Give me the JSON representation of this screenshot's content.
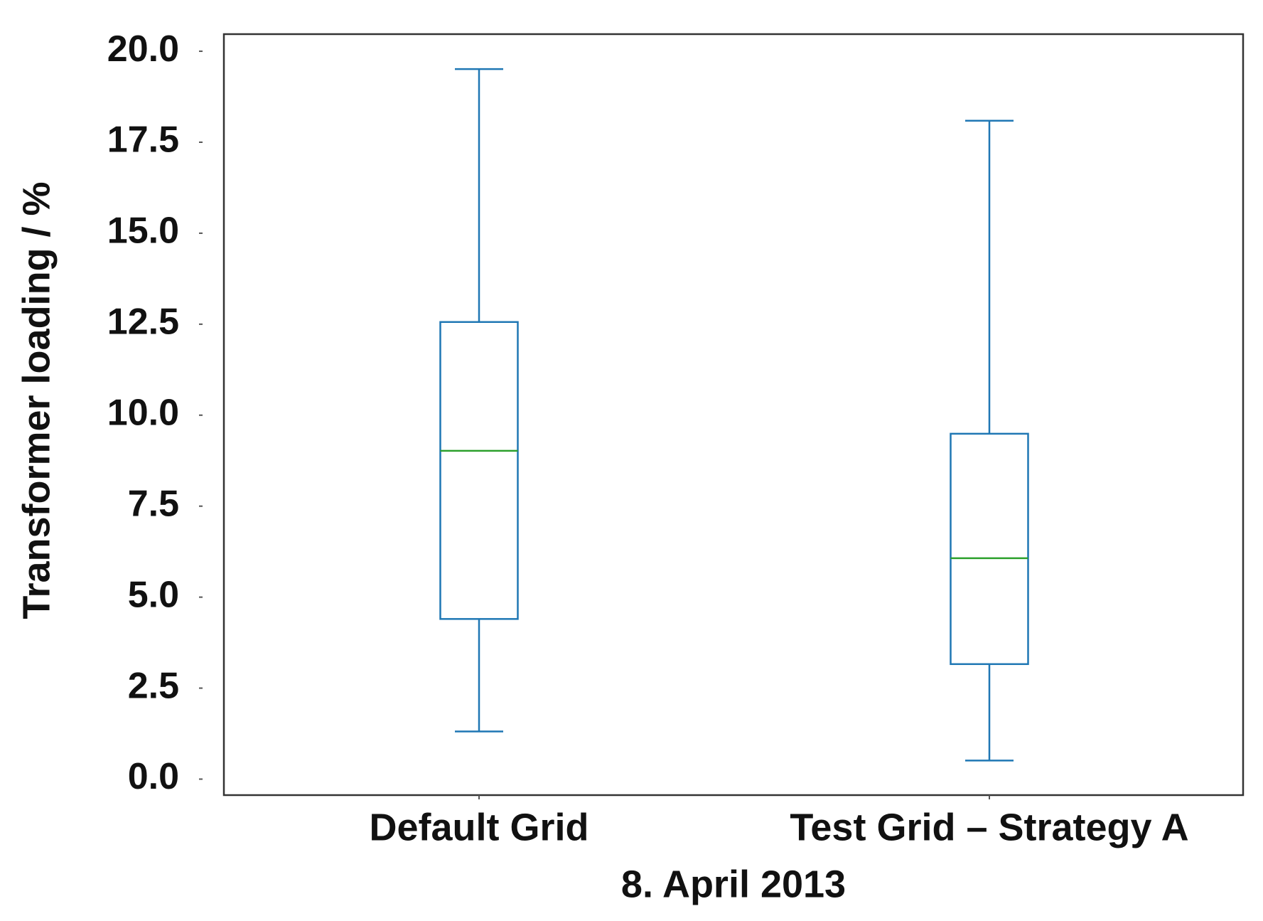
{
  "chart_data": {
    "type": "box",
    "xlabel": "8. April 2013",
    "ylabel": "Transformer loading / %",
    "categories": [
      "Default Grid",
      "Test Grid – Strategy A"
    ],
    "stats": [
      {
        "whislo": 1.31,
        "q1": 4.4,
        "med": 9.02,
        "q3": 12.56,
        "whishi": 19.51
      },
      {
        "whislo": 0.51,
        "q1": 3.16,
        "med": 6.07,
        "q3": 9.49,
        "whishi": 18.09
      }
    ],
    "box_color": "#1f77b4",
    "median_color": "#2ca02c",
    "ylim": [
      -0.44,
      20.47
    ],
    "yticks": [
      {
        "value": 0,
        "label": "0.0"
      },
      2.5,
      {
        "value": 5,
        "label": "5.0"
      },
      7.5,
      {
        "value": 10,
        "label": "10.0"
      },
      12.5,
      {
        "value": 15,
        "label": "15.0"
      },
      17.5,
      {
        "value": 20,
        "label": "20.0"
      }
    ],
    "grid": false
  }
}
